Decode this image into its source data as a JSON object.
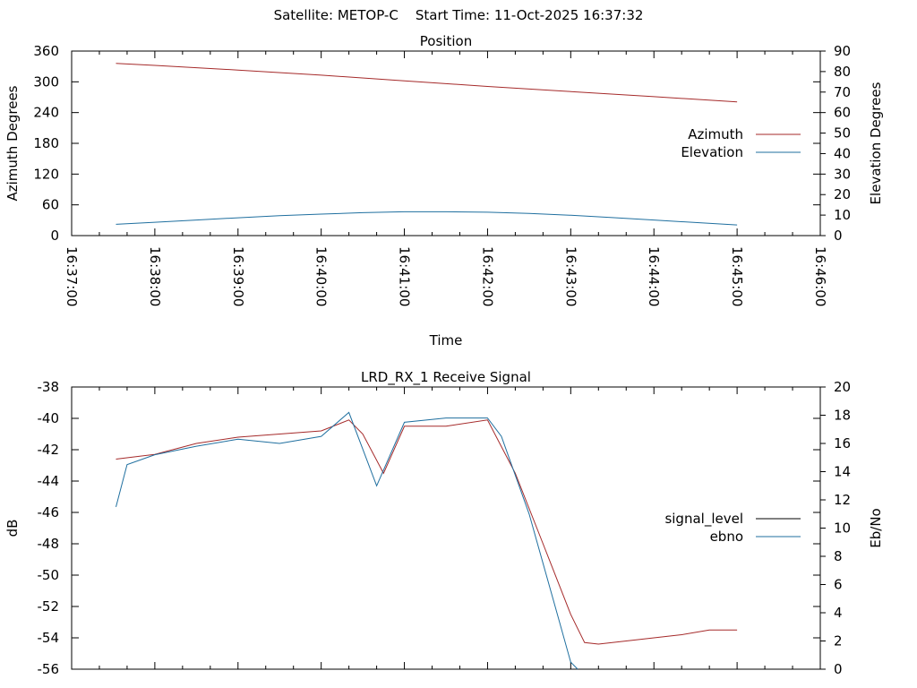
{
  "header": {
    "satellite_label": "Satellite: METOP-C",
    "start_time_label": "Start Time: 11-Oct-2025 16:37:32"
  },
  "chart_data": [
    {
      "type": "line",
      "title": "Position",
      "xlabel": "Time",
      "ylabel": "Azimuth Degrees",
      "y2label": "Elevation Degrees",
      "xlim": [
        "16:37:00",
        "16:46:00"
      ],
      "xticks": [
        "16:37:00",
        "16:38:00",
        "16:39:00",
        "16:40:00",
        "16:41:00",
        "16:42:00",
        "16:43:00",
        "16:44:00",
        "16:45:00",
        "16:46:00"
      ],
      "ylim": [
        0,
        360
      ],
      "yticks": [
        "0",
        "60",
        "120",
        "180",
        "240",
        "300",
        "360"
      ],
      "y2lim": [
        0,
        90
      ],
      "y2ticks": [
        "0",
        "10",
        "20",
        "30",
        "40",
        "50",
        "60",
        "70",
        "80",
        "90"
      ],
      "legend_position": "right",
      "series": [
        {
          "name": "Azimuth",
          "axis": "left",
          "color": "#a52a2a",
          "x": [
            "16:37:32",
            "16:38:00",
            "16:39:00",
            "16:40:00",
            "16:41:00",
            "16:42:00",
            "16:43:00",
            "16:44:00",
            "16:45:00"
          ],
          "y": [
            336,
            332,
            323,
            313,
            302,
            291,
            281,
            271,
            261
          ]
        },
        {
          "name": "Elevation",
          "axis": "right",
          "color": "#1f6f9f",
          "x": [
            "16:37:32",
            "16:38:00",
            "16:38:30",
            "16:39:00",
            "16:39:30",
            "16:40:00",
            "16:40:30",
            "16:41:00",
            "16:41:30",
            "16:42:00",
            "16:42:30",
            "16:43:00",
            "16:43:30",
            "16:44:00",
            "16:44:30",
            "16:45:00"
          ],
          "y": [
            5.5,
            6.5,
            7.6,
            8.7,
            9.7,
            10.5,
            11.2,
            11.6,
            11.6,
            11.4,
            10.8,
            9.9,
            8.8,
            7.6,
            6.4,
            5.2
          ]
        }
      ]
    },
    {
      "type": "line",
      "title": "LRD_RX_1 Receive Signal",
      "xlabel": "",
      "ylabel": "dB",
      "y2label": "Eb/No",
      "xlim": [
        "16:37:00",
        "16:46:00"
      ],
      "ylim": [
        -56,
        -38
      ],
      "yticks": [
        "-56",
        "-54",
        "-52",
        "-50",
        "-48",
        "-46",
        "-44",
        "-42",
        "-40",
        "-38"
      ],
      "y2lim": [
        0,
        20
      ],
      "y2ticks": [
        "0",
        "2",
        "4",
        "6",
        "8",
        "10",
        "12",
        "14",
        "16",
        "18",
        "20"
      ],
      "legend_position": "right",
      "series": [
        {
          "name": "signal_level",
          "axis": "left",
          "color": "#a52a2a",
          "x": [
            "16:37:32",
            "16:38:00",
            "16:38:30",
            "16:39:00",
            "16:39:30",
            "16:40:00",
            "16:40:20",
            "16:40:30",
            "16:40:45",
            "16:41:00",
            "16:41:30",
            "16:42:00",
            "16:42:20",
            "16:42:40",
            "16:43:00",
            "16:43:10",
            "16:43:20",
            "16:43:40",
            "16:44:00",
            "16:44:20",
            "16:44:40",
            "16:45:00"
          ],
          "y": [
            -42.6,
            -42.3,
            -41.6,
            -41.2,
            -41.0,
            -40.8,
            -40.1,
            -41.0,
            -43.5,
            -40.5,
            -40.5,
            -40.1,
            -43.5,
            -48.0,
            -52.5,
            -54.3,
            -54.4,
            -54.2,
            -54.0,
            -53.8,
            -53.5,
            -53.5
          ]
        },
        {
          "name": "ebno",
          "axis": "right",
          "color": "#1f6f9f",
          "x": [
            "16:37:32",
            "16:37:40",
            "16:38:00",
            "16:38:30",
            "16:39:00",
            "16:39:30",
            "16:40:00",
            "16:40:20",
            "16:40:40",
            "16:41:00",
            "16:41:30",
            "16:42:00",
            "16:42:10",
            "16:42:30",
            "16:42:50",
            "16:43:00",
            "16:43:05"
          ],
          "y": [
            11.5,
            14.5,
            15.2,
            15.8,
            16.3,
            16.0,
            16.5,
            18.2,
            13.0,
            17.5,
            17.8,
            17.8,
            16.5,
            11.0,
            4.0,
            0.5,
            0.0
          ]
        }
      ]
    }
  ]
}
